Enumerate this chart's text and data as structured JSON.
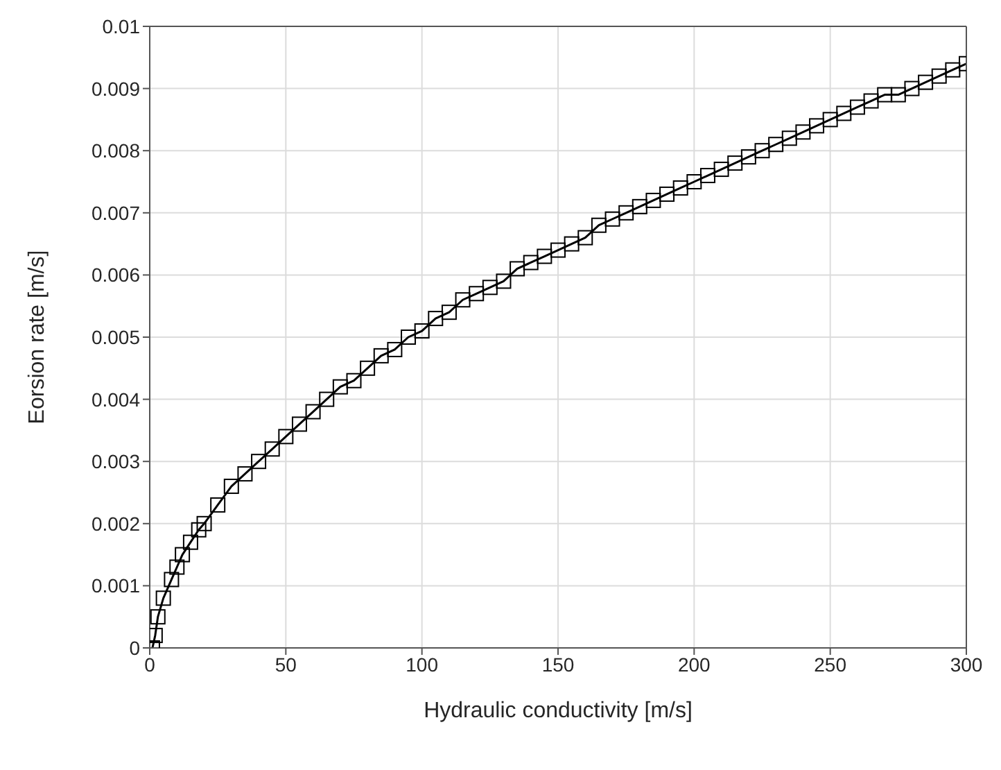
{
  "chart_data": {
    "type": "line",
    "xlabel": "Hydraulic conductivity [m/s]",
    "ylabel": "Eorsion rate [m/s]",
    "x": [
      1,
      2,
      3,
      5,
      8,
      10,
      12,
      15,
      18,
      20,
      25,
      30,
      35,
      40,
      45,
      50,
      55,
      60,
      65,
      70,
      75,
      80,
      85,
      90,
      95,
      100,
      105,
      110,
      115,
      120,
      125,
      130,
      135,
      140,
      145,
      150,
      155,
      160,
      165,
      170,
      175,
      180,
      185,
      190,
      195,
      200,
      205,
      210,
      215,
      220,
      225,
      230,
      235,
      240,
      245,
      250,
      255,
      260,
      265,
      270,
      275,
      280,
      285,
      290,
      295,
      300
    ],
    "series": [
      {
        "color": "#000000",
        "values": [
          0,
          0.0002,
          0.0005,
          0.0008,
          0.0011,
          0.0013,
          0.0015,
          0.0017,
          0.0019,
          0.002,
          0.0023,
          0.0026,
          0.0028,
          0.003,
          0.0032,
          0.0034,
          0.0036,
          0.0038,
          0.004,
          0.0042,
          0.0043,
          0.0045,
          0.0047,
          0.0048,
          0.005,
          0.0051,
          0.0053,
          0.0054,
          0.0056,
          0.0057,
          0.0058,
          0.0059,
          0.0061,
          0.0062,
          0.0063,
          0.0064,
          0.0065,
          0.0066,
          0.0068,
          0.0069,
          0.007,
          0.0071,
          0.0072,
          0.0073,
          0.0074,
          0.0075,
          0.0076,
          0.0077,
          0.0078,
          0.0079,
          0.008,
          0.0081,
          0.0082,
          0.0083,
          0.0084,
          0.0085,
          0.0086,
          0.0087,
          0.0088,
          0.0089,
          0.0089,
          0.009,
          0.0091,
          0.0092,
          0.0093,
          0.0094
        ]
      }
    ],
    "xlim": [
      0,
      300
    ],
    "xticks": [
      0,
      50,
      100,
      150,
      200,
      250,
      300
    ],
    "ylim": [
      0,
      0.01
    ],
    "yticks": [
      0,
      0.001,
      0.002,
      0.003,
      0.004,
      0.005,
      0.006,
      0.007,
      0.008,
      0.009,
      0.01
    ],
    "grid": true,
    "marker": "square",
    "line_style": "solid"
  }
}
